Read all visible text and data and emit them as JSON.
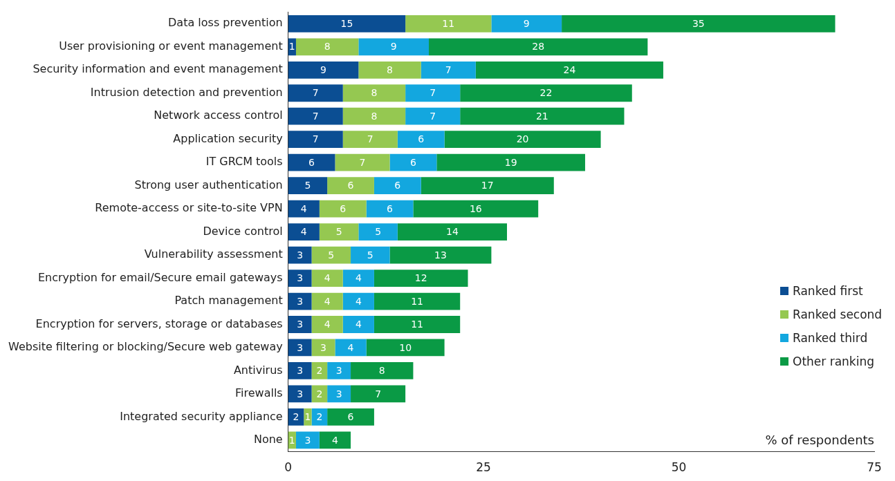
{
  "chart_data": {
    "type": "bar",
    "orientation": "horizontal",
    "stacked": true,
    "xlabel": "% of respondents",
    "categories": [
      "Data loss prevention",
      "User provisioning or event management",
      "Security information and event management",
      "Intrusion detection and prevention",
      "Network access control",
      "Application security",
      "IT GRCM tools",
      "Strong user authentication",
      "Remote-access or site-to-site VPN",
      "Device control",
      "Vulnerability assessment",
      "Encryption for email/Secure email gateways",
      "Patch management",
      "Encryption for servers, storage or databases",
      "Website filtering or blocking/Secure web gateway",
      "Antivirus",
      "Firewalls",
      "Integrated security appliance",
      "None"
    ],
    "series": [
      {
        "name": "Ranked first",
        "color": "#0b4e93",
        "values": [
          15,
          1,
          9,
          7,
          7,
          7,
          6,
          5,
          4,
          4,
          3,
          3,
          3,
          3,
          3,
          3,
          3,
          2,
          null
        ]
      },
      {
        "name": "Ranked second",
        "color": "#95c851",
        "values": [
          11,
          8,
          8,
          8,
          8,
          7,
          7,
          6,
          6,
          5,
          5,
          4,
          4,
          4,
          3,
          2,
          2,
          1,
          1
        ]
      },
      {
        "name": "Ranked third",
        "color": "#13a7df",
        "values": [
          9,
          9,
          7,
          7,
          7,
          6,
          6,
          6,
          6,
          5,
          5,
          4,
          4,
          4,
          4,
          3,
          3,
          2,
          3
        ]
      },
      {
        "name": "Other ranking",
        "color": "#0a9a45",
        "values": [
          35,
          28,
          24,
          22,
          21,
          20,
          19,
          17,
          16,
          14,
          13,
          12,
          11,
          11,
          10,
          8,
          7,
          6,
          4
        ]
      }
    ],
    "xlim": [
      0,
      75
    ],
    "xticks": [
      0,
      25,
      50,
      75
    ],
    "grid": false,
    "legend": "right",
    "data_labels": true
  }
}
